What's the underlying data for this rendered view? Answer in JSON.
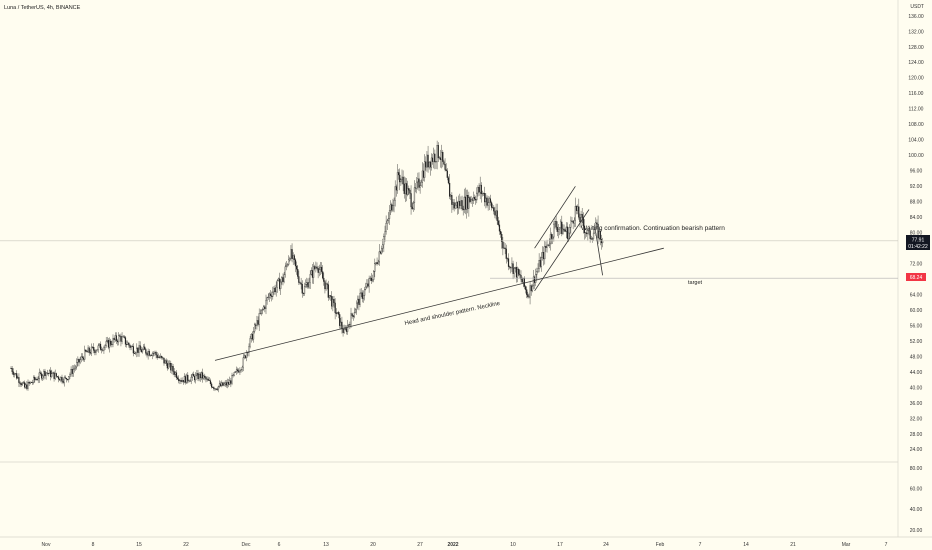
{
  "header": {
    "pair_label": "Luna / TetherUS, 4h, BINANCE"
  },
  "price_axis": {
    "currency": "USDT",
    "ticks": [
      136,
      132,
      128,
      124,
      120,
      116,
      112,
      108,
      104,
      100,
      96,
      92,
      88,
      84,
      80,
      76,
      72,
      68,
      64,
      60,
      56,
      52,
      48,
      44,
      40,
      36,
      32,
      28,
      24
    ],
    "tick_labels": [
      "136.00",
      "132.00",
      "128.00",
      "124.00",
      "120.00",
      "116.00",
      "112.00",
      "108.00",
      "104.00",
      "100.00",
      "96.00",
      "92.00",
      "88.00",
      "84.00",
      "80.00",
      "76.00",
      "72.00",
      "68.00",
      "64.00",
      "60.00",
      "56.00",
      "52.00",
      "48.00",
      "44.00",
      "40.00",
      "36.00",
      "32.00",
      "28.00",
      "24.00"
    ]
  },
  "volume_axis": {
    "ticks": [
      80,
      60,
      40,
      20
    ],
    "tick_labels": [
      "80.00",
      "60.00",
      "40.00",
      "20.00"
    ]
  },
  "time_axis": {
    "labels": [
      "Nov",
      "8",
      "15",
      "22",
      "Dec",
      "6",
      "13",
      "20",
      "27",
      "2022",
      "10",
      "17",
      "24",
      "Feb",
      "7",
      "14",
      "21",
      "Mar",
      "7"
    ]
  },
  "badges": {
    "last_price": "77.91",
    "countdown": "01:42:22",
    "target_price": "68.24",
    "last_price_color": "#131722",
    "target_color": "#f23645"
  },
  "annotations": {
    "neckline_label": "Head and shoulder pattern. Neckline",
    "waiting_label": "Waiting confirmation. Continuation bearish pattern",
    "target_label": "target"
  },
  "colors": {
    "background": "#fffdf0",
    "candle": "#1e1e1e",
    "line": "#333333",
    "target_line": "#b0b0b0"
  },
  "chart_data": {
    "type": "candlestick",
    "title": "Luna / TetherUS, 4h, BINANCE",
    "ylabel": "USDT",
    "ylim": [
      22,
      140
    ],
    "y_scale": "linear",
    "grid": false,
    "x_range": [
      "2021-10-25",
      "2022-03-08"
    ],
    "price_path": [
      {
        "date": "2021-10-25",
        "price": 45
      },
      {
        "date": "2021-10-27",
        "price": 40
      },
      {
        "date": "2021-10-30",
        "price": 44
      },
      {
        "date": "2021-11-02",
        "price": 42
      },
      {
        "date": "2021-11-05",
        "price": 49
      },
      {
        "date": "2021-11-08",
        "price": 51
      },
      {
        "date": "2021-11-10",
        "price": 53
      },
      {
        "date": "2021-11-12",
        "price": 50
      },
      {
        "date": "2021-11-15",
        "price": 49
      },
      {
        "date": "2021-11-17",
        "price": 46
      },
      {
        "date": "2021-11-19",
        "price": 42
      },
      {
        "date": "2021-11-22",
        "price": 43
      },
      {
        "date": "2021-11-24",
        "price": 40
      },
      {
        "date": "2021-11-26",
        "price": 41
      },
      {
        "date": "2021-11-28",
        "price": 46
      },
      {
        "date": "2021-11-30",
        "price": 56
      },
      {
        "date": "2021-12-02",
        "price": 64
      },
      {
        "date": "2021-12-04",
        "price": 68
      },
      {
        "date": "2021-12-05",
        "price": 75
      },
      {
        "date": "2021-12-07",
        "price": 65
      },
      {
        "date": "2021-12-09",
        "price": 72
      },
      {
        "date": "2021-12-11",
        "price": 63
      },
      {
        "date": "2021-12-13",
        "price": 54
      },
      {
        "date": "2021-12-15",
        "price": 62
      },
      {
        "date": "2021-12-17",
        "price": 68
      },
      {
        "date": "2021-12-19",
        "price": 80
      },
      {
        "date": "2021-12-21",
        "price": 95
      },
      {
        "date": "2021-12-23",
        "price": 88
      },
      {
        "date": "2021-12-25",
        "price": 98
      },
      {
        "date": "2021-12-27",
        "price": 101
      },
      {
        "date": "2021-12-29",
        "price": 87
      },
      {
        "date": "2021-12-31",
        "price": 88
      },
      {
        "date": "2022-01-02",
        "price": 91
      },
      {
        "date": "2022-01-04",
        "price": 86
      },
      {
        "date": "2022-01-06",
        "price": 73
      },
      {
        "date": "2022-01-08",
        "price": 68
      },
      {
        "date": "2022-01-09",
        "price": 64
      },
      {
        "date": "2022-01-11",
        "price": 73
      },
      {
        "date": "2022-01-13",
        "price": 82
      },
      {
        "date": "2022-01-15",
        "price": 80
      },
      {
        "date": "2022-01-16",
        "price": 86
      },
      {
        "date": "2022-01-18",
        "price": 79
      },
      {
        "date": "2022-01-19",
        "price": 81
      },
      {
        "date": "2022-01-20",
        "price": 77.91
      }
    ],
    "neckline": [
      {
        "date": "2021-11-24",
        "price": 47
      },
      {
        "date": "2022-01-29",
        "price": 76
      }
    ],
    "rising_channel_upper": [
      {
        "date": "2022-01-10",
        "price": 76
      },
      {
        "date": "2022-01-16",
        "price": 92
      }
    ],
    "rising_channel_lower": [
      {
        "date": "2022-01-10",
        "price": 65
      },
      {
        "date": "2022-01-18",
        "price": 86
      }
    ],
    "projected_drop": [
      {
        "date": "2022-01-19",
        "price": 80
      },
      {
        "date": "2022-01-20",
        "price": 69
      }
    ],
    "target_level": 68.24,
    "last_price": 77.91
  }
}
